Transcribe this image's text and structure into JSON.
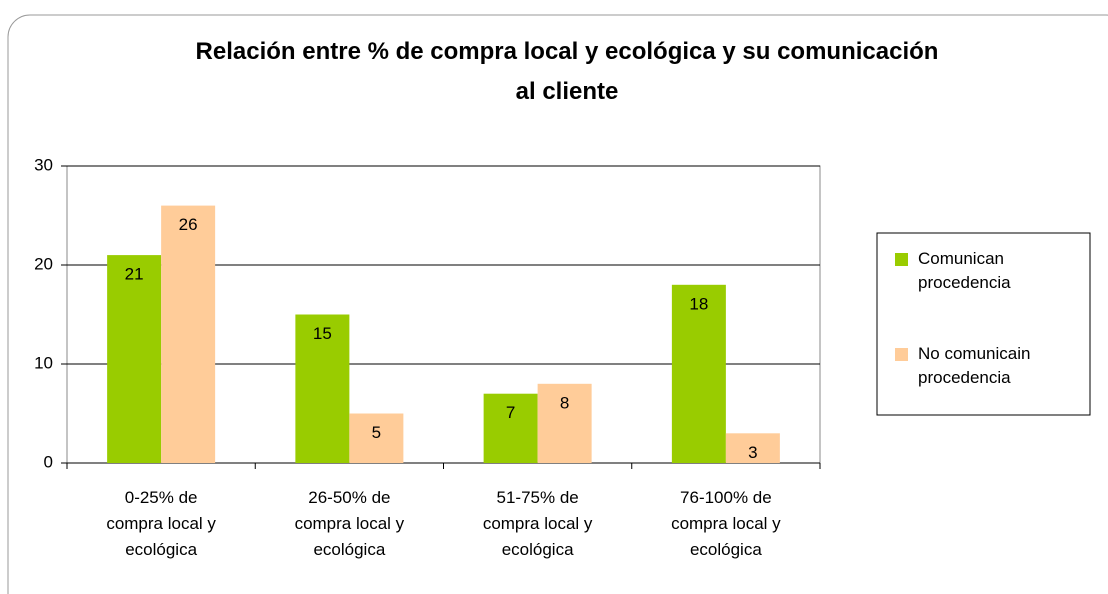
{
  "chart_data": {
    "type": "bar",
    "title": "Relación entre % de compra local y ecológica y su comunicación al cliente",
    "categories": [
      "0-25% de compra local y ecológica",
      "26-50% de compra local y ecológica",
      "51-75% de compra local y ecológica",
      "76-100% de compra local y ecológica"
    ],
    "series": [
      {
        "name": "Comunican procedencia",
        "color": "#99cc00",
        "values": [
          21,
          15,
          7,
          18
        ]
      },
      {
        "name": "No comunicain procedencia",
        "color": "#ffcc99",
        "values": [
          26,
          5,
          8,
          3
        ]
      }
    ],
    "ylim": [
      0,
      30
    ],
    "yticks": [
      0,
      10,
      20,
      30
    ],
    "grid": true,
    "legend": "right"
  }
}
